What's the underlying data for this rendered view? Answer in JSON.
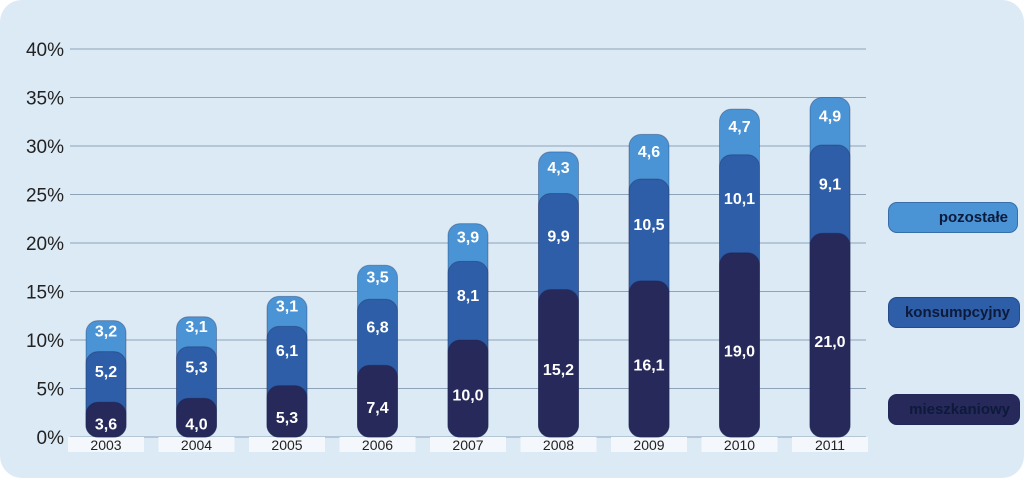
{
  "chart_data": {
    "type": "bar",
    "stacked": true,
    "categories": [
      "2003",
      "2004",
      "2005",
      "2006",
      "2007",
      "2008",
      "2009",
      "2010",
      "2011"
    ],
    "series": [
      {
        "name": "mieszkaniowy",
        "labels": [
          "3,6",
          "4,0",
          "5,3",
          "7,4",
          "10,0",
          "15,2",
          "16,1",
          "19,0",
          "21,0"
        ],
        "values": [
          3.6,
          4.0,
          5.3,
          7.4,
          10.0,
          15.2,
          16.1,
          19.0,
          21.0
        ],
        "color": "#26295a"
      },
      {
        "name": "konsumpcyjny",
        "labels": [
          "5,2",
          "5,3",
          "6,1",
          "6,8",
          "8,1",
          "9,9",
          "10,5",
          "10,1",
          "9,1"
        ],
        "values": [
          5.2,
          5.3,
          6.1,
          6.8,
          8.1,
          9.9,
          10.5,
          10.1,
          9.1
        ],
        "color": "#2e5ea8"
      },
      {
        "name": "pozostałe",
        "labels": [
          "3,2",
          "3,1",
          "3,1",
          "3,5",
          "3,9",
          "4,3",
          "4,6",
          "4,7",
          "4,9"
        ],
        "values": [
          3.2,
          3.1,
          3.1,
          3.5,
          3.9,
          4.3,
          4.6,
          4.7,
          4.9
        ],
        "color": "#4a94d6"
      }
    ],
    "y_ticks": [
      "0%",
      "5%",
      "10%",
      "15%",
      "20%",
      "25%",
      "30%",
      "35%",
      "40%"
    ],
    "ylim": [
      0,
      40
    ],
    "grid": true,
    "legend_position": "right"
  },
  "legend": [
    {
      "label": "pozostałe",
      "color": "#4a94d6"
    },
    {
      "label": "konsumpcyjny",
      "color": "#2e5ea8"
    },
    {
      "label": "mieszkaniowy",
      "color": "#26295a"
    }
  ]
}
